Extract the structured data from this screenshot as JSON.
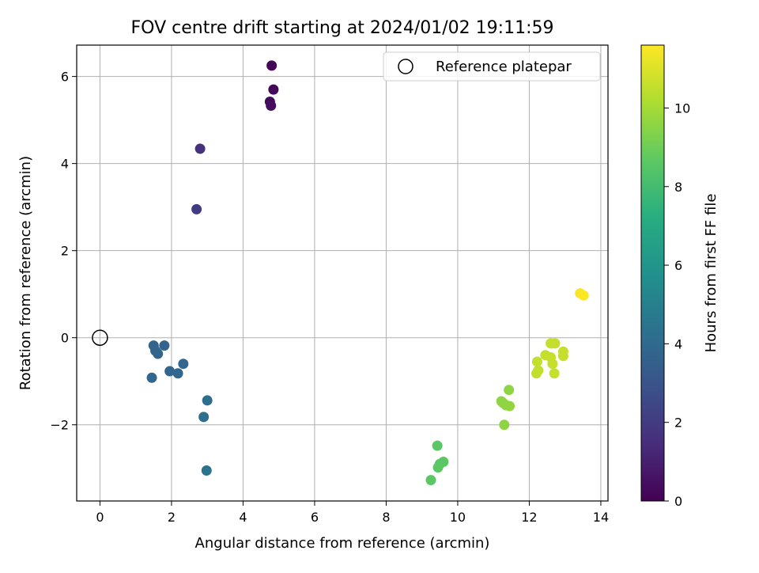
{
  "chart_data": {
    "type": "scatter",
    "title": "FOV centre drift starting at 2024/01/02 19:11:59",
    "xlabel": "Angular distance from reference (arcmin)",
    "ylabel": "Rotation from reference (arcmin)",
    "xlim": [
      -0.65,
      14.2
    ],
    "ylim": [
      -3.75,
      6.72
    ],
    "xticks": [
      0,
      2,
      4,
      6,
      8,
      10,
      12,
      14
    ],
    "yticks": [
      -2,
      0,
      2,
      4,
      6
    ],
    "xtick_labels": [
      "0",
      "2",
      "4",
      "6",
      "8",
      "10",
      "12",
      "14"
    ],
    "ytick_labels": [
      "−2",
      "0",
      "2",
      "4",
      "6"
    ],
    "grid": true,
    "legend": {
      "placement": "top-right",
      "entries": [
        "Reference platepar"
      ]
    },
    "reference_point": {
      "x": 0,
      "y": 0
    },
    "colorbar": {
      "label": "Hours from first FF file",
      "colormap": "viridis",
      "range": [
        0,
        11.6
      ],
      "ticks": [
        0,
        2,
        4,
        6,
        8,
        10
      ],
      "tick_labels": [
        "0",
        "2",
        "4",
        "6",
        "8",
        "10"
      ]
    },
    "points": [
      {
        "x": 4.8,
        "y": 6.25,
        "c": 0.1
      },
      {
        "x": 4.85,
        "y": 5.7,
        "c": 0.2
      },
      {
        "x": 4.75,
        "y": 5.42,
        "c": 0.3
      },
      {
        "x": 4.78,
        "y": 5.33,
        "c": 0.4
      },
      {
        "x": 2.8,
        "y": 4.34,
        "c": 1.6
      },
      {
        "x": 2.7,
        "y": 2.95,
        "c": 2.0
      },
      {
        "x": 1.5,
        "y": -0.18,
        "c": 3.7
      },
      {
        "x": 1.8,
        "y": -0.18,
        "c": 3.7
      },
      {
        "x": 1.55,
        "y": -0.3,
        "c": 3.7
      },
      {
        "x": 1.62,
        "y": -0.37,
        "c": 3.75
      },
      {
        "x": 2.33,
        "y": -0.6,
        "c": 3.8
      },
      {
        "x": 1.95,
        "y": -0.77,
        "c": 3.8
      },
      {
        "x": 2.18,
        "y": -0.82,
        "c": 3.85
      },
      {
        "x": 1.45,
        "y": -0.92,
        "c": 3.8
      },
      {
        "x": 3.0,
        "y": -1.44,
        "c": 4.2
      },
      {
        "x": 2.9,
        "y": -1.82,
        "c": 4.2
      },
      {
        "x": 2.98,
        "y": -3.05,
        "c": 4.4
      },
      {
        "x": 9.43,
        "y": -2.48,
        "c": 8.6
      },
      {
        "x": 9.6,
        "y": -2.85,
        "c": 8.6
      },
      {
        "x": 9.5,
        "y": -2.9,
        "c": 8.6
      },
      {
        "x": 9.45,
        "y": -2.98,
        "c": 8.65
      },
      {
        "x": 9.25,
        "y": -3.27,
        "c": 8.6
      },
      {
        "x": 11.43,
        "y": -1.2,
        "c": 9.6
      },
      {
        "x": 11.22,
        "y": -1.46,
        "c": 9.6
      },
      {
        "x": 11.27,
        "y": -1.5,
        "c": 9.6
      },
      {
        "x": 11.35,
        "y": -1.55,
        "c": 9.6
      },
      {
        "x": 11.45,
        "y": -1.57,
        "c": 9.65
      },
      {
        "x": 11.3,
        "y": -2.0,
        "c": 9.6
      },
      {
        "x": 12.6,
        "y": -0.13,
        "c": 10.6
      },
      {
        "x": 12.72,
        "y": -0.13,
        "c": 10.6
      },
      {
        "x": 12.95,
        "y": -0.32,
        "c": 10.6
      },
      {
        "x": 12.45,
        "y": -0.4,
        "c": 10.6
      },
      {
        "x": 12.95,
        "y": -0.42,
        "c": 10.6
      },
      {
        "x": 12.6,
        "y": -0.45,
        "c": 10.6
      },
      {
        "x": 12.22,
        "y": -0.55,
        "c": 10.55
      },
      {
        "x": 12.65,
        "y": -0.6,
        "c": 10.6
      },
      {
        "x": 12.25,
        "y": -0.75,
        "c": 10.55
      },
      {
        "x": 12.2,
        "y": -0.82,
        "c": 10.55
      },
      {
        "x": 12.7,
        "y": -0.82,
        "c": 10.6
      },
      {
        "x": 13.42,
        "y": 1.02,
        "c": 11.5
      },
      {
        "x": 13.52,
        "y": 0.97,
        "c": 11.6
      }
    ]
  }
}
